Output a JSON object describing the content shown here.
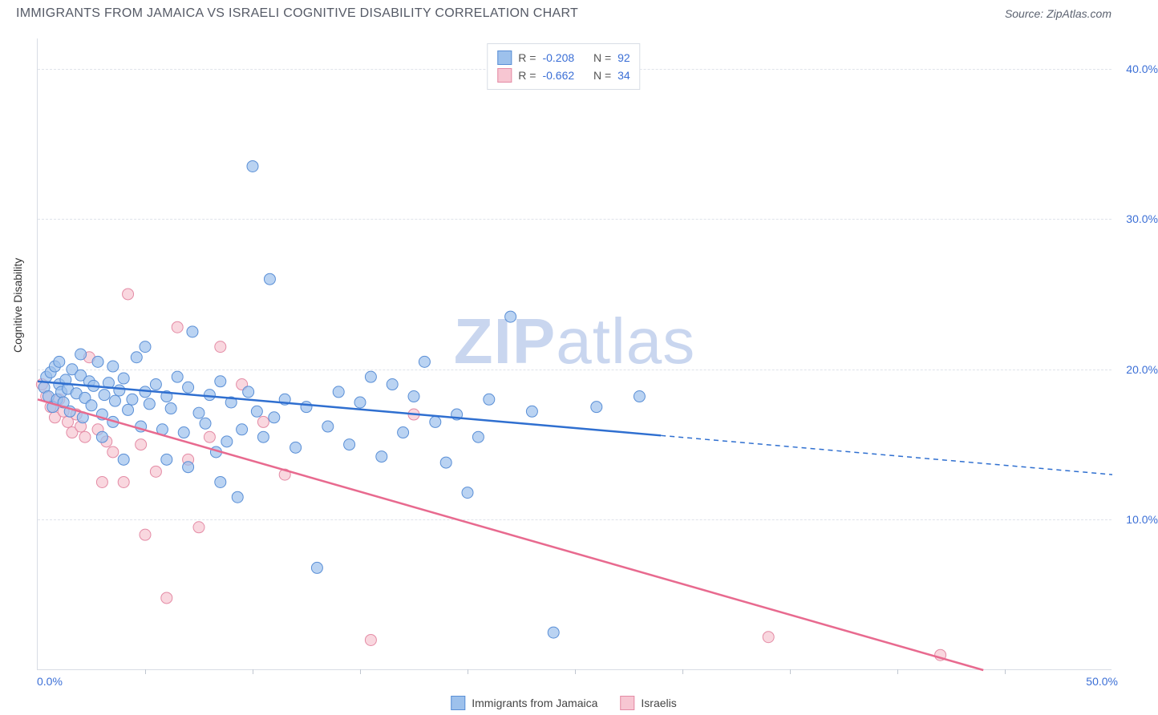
{
  "header": {
    "title": "IMMIGRANTS FROM JAMAICA VS ISRAELI COGNITIVE DISABILITY CORRELATION CHART",
    "source": "Source: ZipAtlas.com"
  },
  "watermark": {
    "zip": "ZIP",
    "atlas": "atlas"
  },
  "chart": {
    "type": "scatter",
    "background_color": "#ffffff",
    "grid_color": "#dfe3ea",
    "border_color": "#d8dde5",
    "ylabel": "Cognitive Disability",
    "xlim": [
      0,
      50
    ],
    "ylim": [
      0,
      42
    ],
    "yticks": [
      10,
      20,
      30,
      40
    ],
    "ytick_labels": [
      "10.0%",
      "20.0%",
      "30.0%",
      "40.0%"
    ],
    "xtick_positions": [
      5,
      10,
      15,
      20,
      25,
      30,
      35,
      40,
      45
    ],
    "x_origin_label": "0.0%",
    "x_end_label": "50.0%",
    "marker_radius": 7,
    "series": [
      {
        "name": "Immigrants from Jamaica",
        "color_fill": "#9dc1ec",
        "color_stroke": "#5a8fd6",
        "r": "-0.208",
        "n": "92",
        "trend": {
          "solid": [
            [
              0,
              19.2
            ],
            [
              29,
              15.6
            ]
          ],
          "dash": [
            [
              29,
              15.6
            ],
            [
              50,
              13.0
            ]
          ],
          "color": "#2f6fd0"
        },
        "points": [
          [
            0.3,
            18.8
          ],
          [
            0.4,
            19.5
          ],
          [
            0.5,
            18.2
          ],
          [
            0.6,
            19.8
          ],
          [
            0.7,
            17.5
          ],
          [
            0.8,
            20.2
          ],
          [
            0.9,
            18.0
          ],
          [
            1.0,
            19.0
          ],
          [
            1.1,
            18.5
          ],
          [
            1.2,
            17.8
          ],
          [
            1.3,
            19.3
          ],
          [
            1.4,
            18.7
          ],
          [
            1.5,
            17.2
          ],
          [
            1.6,
            20.0
          ],
          [
            1.8,
            18.4
          ],
          [
            2.0,
            19.6
          ],
          [
            2.1,
            16.8
          ],
          [
            2.2,
            18.1
          ],
          [
            2.4,
            19.2
          ],
          [
            2.5,
            17.6
          ],
          [
            2.6,
            18.9
          ],
          [
            2.8,
            20.5
          ],
          [
            3.0,
            17.0
          ],
          [
            3.1,
            18.3
          ],
          [
            3.3,
            19.1
          ],
          [
            3.5,
            16.5
          ],
          [
            3.6,
            17.9
          ],
          [
            3.8,
            18.6
          ],
          [
            4.0,
            19.4
          ],
          [
            4.2,
            17.3
          ],
          [
            4.4,
            18.0
          ],
          [
            4.6,
            20.8
          ],
          [
            4.8,
            16.2
          ],
          [
            5.0,
            18.5
          ],
          [
            5.2,
            17.7
          ],
          [
            5.5,
            19.0
          ],
          [
            5.8,
            16.0
          ],
          [
            6.0,
            18.2
          ],
          [
            6.2,
            17.4
          ],
          [
            6.5,
            19.5
          ],
          [
            6.8,
            15.8
          ],
          [
            7.0,
            18.8
          ],
          [
            7.2,
            22.5
          ],
          [
            7.5,
            17.1
          ],
          [
            7.8,
            16.4
          ],
          [
            8.0,
            18.3
          ],
          [
            8.3,
            14.5
          ],
          [
            8.5,
            19.2
          ],
          [
            8.8,
            15.2
          ],
          [
            9.0,
            17.8
          ],
          [
            9.3,
            11.5
          ],
          [
            9.5,
            16.0
          ],
          [
            9.8,
            18.5
          ],
          [
            10.0,
            33.5
          ],
          [
            10.2,
            17.2
          ],
          [
            10.5,
            15.5
          ],
          [
            10.8,
            26.0
          ],
          [
            11.0,
            16.8
          ],
          [
            11.5,
            18.0
          ],
          [
            12.0,
            14.8
          ],
          [
            12.5,
            17.5
          ],
          [
            13.0,
            6.8
          ],
          [
            13.5,
            16.2
          ],
          [
            14.0,
            18.5
          ],
          [
            14.5,
            15.0
          ],
          [
            15.0,
            17.8
          ],
          [
            15.5,
            19.5
          ],
          [
            16.0,
            14.2
          ],
          [
            16.5,
            19.0
          ],
          [
            17.0,
            15.8
          ],
          [
            17.5,
            18.2
          ],
          [
            18.0,
            20.5
          ],
          [
            18.5,
            16.5
          ],
          [
            19.0,
            13.8
          ],
          [
            19.5,
            17.0
          ],
          [
            20.0,
            11.8
          ],
          [
            20.5,
            15.5
          ],
          [
            21.0,
            18.0
          ],
          [
            22.0,
            23.5
          ],
          [
            23.0,
            17.2
          ],
          [
            24.0,
            2.5
          ],
          [
            26.0,
            17.5
          ],
          [
            28.0,
            18.2
          ],
          [
            1.0,
            20.5
          ],
          [
            2.0,
            21.0
          ],
          [
            3.5,
            20.2
          ],
          [
            5.0,
            21.5
          ],
          [
            6.0,
            14.0
          ],
          [
            7.0,
            13.5
          ],
          [
            8.5,
            12.5
          ],
          [
            4.0,
            14.0
          ],
          [
            3.0,
            15.5
          ]
        ]
      },
      {
        "name": "Israelis",
        "color_fill": "#f7c6d2",
        "color_stroke": "#e48ba5",
        "r": "-0.662",
        "n": "34",
        "trend": {
          "solid": [
            [
              0,
              18.0
            ],
            [
              44,
              0
            ]
          ],
          "color": "#e86a8f"
        },
        "points": [
          [
            0.2,
            19.0
          ],
          [
            0.4,
            18.2
          ],
          [
            0.6,
            17.5
          ],
          [
            0.8,
            16.8
          ],
          [
            1.0,
            18.0
          ],
          [
            1.2,
            17.2
          ],
          [
            1.4,
            16.5
          ],
          [
            1.6,
            15.8
          ],
          [
            1.8,
            17.0
          ],
          [
            2.0,
            16.2
          ],
          [
            2.2,
            15.5
          ],
          [
            2.4,
            20.8
          ],
          [
            2.8,
            16.0
          ],
          [
            3.0,
            12.5
          ],
          [
            3.2,
            15.2
          ],
          [
            3.5,
            14.5
          ],
          [
            4.0,
            12.5
          ],
          [
            4.2,
            25.0
          ],
          [
            4.8,
            15.0
          ],
          [
            5.5,
            13.2
          ],
          [
            6.0,
            4.8
          ],
          [
            6.5,
            22.8
          ],
          [
            7.0,
            14.0
          ],
          [
            7.5,
            9.5
          ],
          [
            8.0,
            15.5
          ],
          [
            8.5,
            21.5
          ],
          [
            9.5,
            19.0
          ],
          [
            10.5,
            16.5
          ],
          [
            11.5,
            13.0
          ],
          [
            15.5,
            2.0
          ],
          [
            17.5,
            17.0
          ],
          [
            34.0,
            2.2
          ],
          [
            42.0,
            1.0
          ],
          [
            5.0,
            9.0
          ]
        ]
      }
    ]
  },
  "legend_bottom": {
    "items": [
      {
        "label": "Immigrants from Jamaica",
        "fill": "#9dc1ec",
        "stroke": "#5a8fd6"
      },
      {
        "label": "Israelis",
        "fill": "#f7c6d2",
        "stroke": "#e48ba5"
      }
    ]
  }
}
